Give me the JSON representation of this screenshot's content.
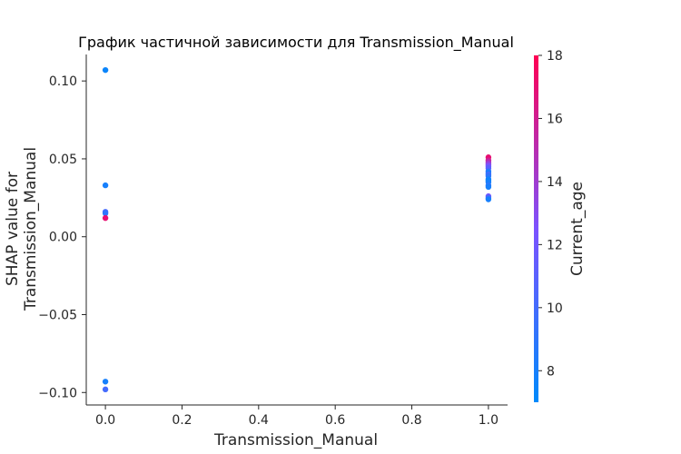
{
  "chart_data": {
    "type": "scatter",
    "title": "График частичной зависимости для Transmission_Manual",
    "xlabel": "Transmission_Manual",
    "ylabel": "SHAP value for\nTransmission_Manual",
    "xlim": [
      -0.05,
      1.05
    ],
    "ylim": [
      -0.108,
      0.117
    ],
    "x_ticks": [
      "0.0",
      "0.2",
      "0.4",
      "0.6",
      "0.8",
      "1.0"
    ],
    "y_ticks": [
      "0.10",
      "0.05",
      "0.00",
      "−0.05",
      "−0.10"
    ],
    "grid": false,
    "colorbar": {
      "label": "Current_age",
      "min": 7,
      "max": 18,
      "ticks": [
        "8",
        "10",
        "12",
        "14",
        "16",
        "18"
      ],
      "color_low": "#008afb",
      "color_high": "#ff0052"
    },
    "points": [
      {
        "x": 0,
        "y": 0.107,
        "c": 7.5
      },
      {
        "x": 0,
        "y": 0.033,
        "c": 8
      },
      {
        "x": 0,
        "y": 0.016,
        "c": 10
      },
      {
        "x": 0,
        "y": 0.015,
        "c": 9
      },
      {
        "x": 0,
        "y": 0.012,
        "c": 17
      },
      {
        "x": 0,
        "y": -0.093,
        "c": 8
      },
      {
        "x": 0,
        "y": -0.098,
        "c": 10
      },
      {
        "x": 1,
        "y": 0.051,
        "c": 17
      },
      {
        "x": 1,
        "y": 0.049,
        "c": 16
      },
      {
        "x": 1,
        "y": 0.048,
        "c": 15
      },
      {
        "x": 1,
        "y": 0.047,
        "c": 14
      },
      {
        "x": 1,
        "y": 0.046,
        "c": 13
      },
      {
        "x": 1,
        "y": 0.045,
        "c": 12
      },
      {
        "x": 1,
        "y": 0.044,
        "c": 11
      },
      {
        "x": 1,
        "y": 0.042,
        "c": 9
      },
      {
        "x": 1,
        "y": 0.041,
        "c": 8
      },
      {
        "x": 1,
        "y": 0.04,
        "c": 10
      },
      {
        "x": 1,
        "y": 0.039,
        "c": 9
      },
      {
        "x": 1,
        "y": 0.037,
        "c": 8
      },
      {
        "x": 1,
        "y": 0.036,
        "c": 7.5
      },
      {
        "x": 1,
        "y": 0.035,
        "c": 8
      },
      {
        "x": 1,
        "y": 0.033,
        "c": 9
      },
      {
        "x": 1,
        "y": 0.032,
        "c": 8
      },
      {
        "x": 1,
        "y": 0.026,
        "c": 12
      },
      {
        "x": 1,
        "y": 0.025,
        "c": 10
      },
      {
        "x": 1,
        "y": 0.024,
        "c": 8
      }
    ]
  }
}
